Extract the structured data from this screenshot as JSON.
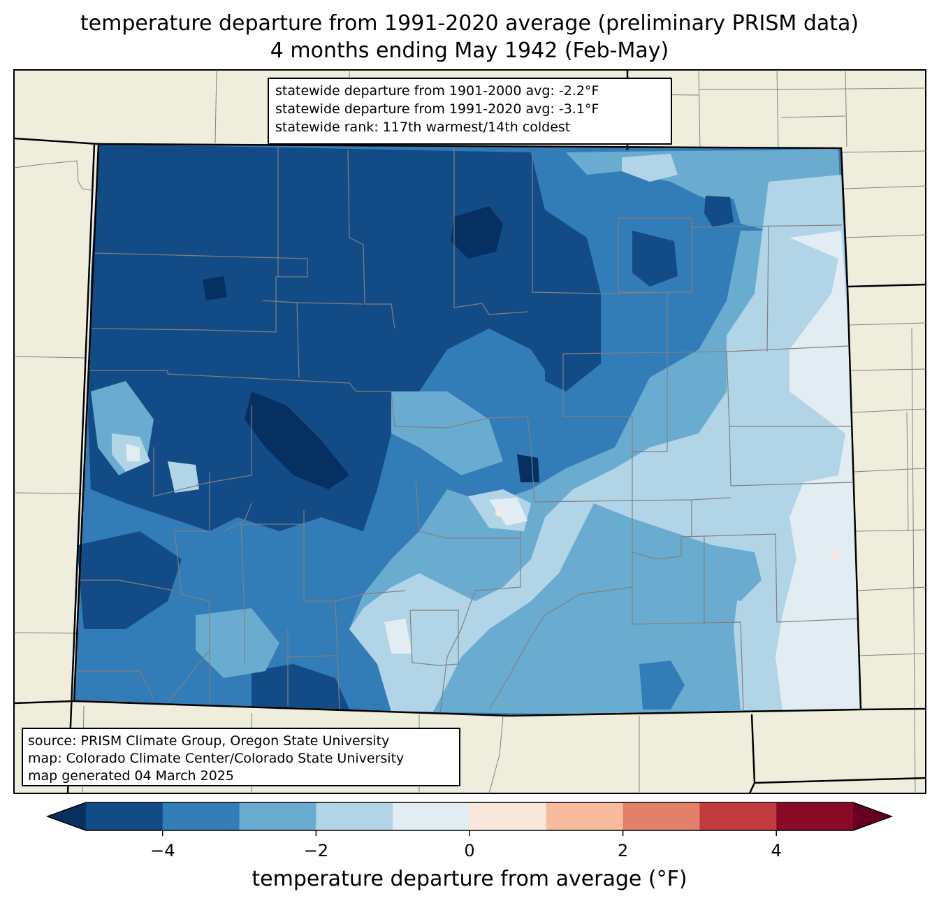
{
  "title_line1": "temperature departure from 1991-2020 average (preliminary PRISM data)",
  "title_line2": "4 months ending May 1942 (Feb-May)",
  "stats": {
    "line1": "statewide departure from 1901-2000 avg: -2.2°F",
    "line2": "statewide departure from 1991-2020 avg: -3.1°F",
    "line3": "statewide rank: 117th warmest/14th coldest"
  },
  "source": {
    "line1": "source: PRISM Climate Group, Oregon State University",
    "line2": "map: Colorado Climate Center/Colorado State University",
    "line3": "map generated 04 March 2025"
  },
  "colorbar": {
    "label": "temperature departure from average (°F)",
    "ticks": [
      "−4",
      "−2",
      "0",
      "2",
      "4"
    ],
    "tick_values": [
      -4,
      -2,
      0,
      2,
      4
    ],
    "bins": [
      {
        "range": "< -5",
        "color": "#053061"
      },
      {
        "range": "-5 to -4",
        "color": "#134b87"
      },
      {
        "range": "-4 to -3",
        "color": "#327cb7"
      },
      {
        "range": "-3 to -2",
        "color": "#6aacd0"
      },
      {
        "range": "-2 to -1",
        "color": "#b1d5e7"
      },
      {
        "range": "-1 to 0",
        "color": "#e2edf3"
      },
      {
        "range": "0 to 1",
        "color": "#fae7dc"
      },
      {
        "range": "1 to 2",
        "color": "#f8bb9e"
      },
      {
        "range": "2 to 3",
        "color": "#e2806a"
      },
      {
        "range": "3 to 4",
        "color": "#c13a3e"
      },
      {
        "range": "4 to 5",
        "color": "#890a26"
      },
      {
        "range": "> 5",
        "color": "#67001f"
      }
    ]
  },
  "colors": {
    "land": "#efeedc",
    "county_lines": "#808080",
    "state_lines": "#000000"
  }
}
